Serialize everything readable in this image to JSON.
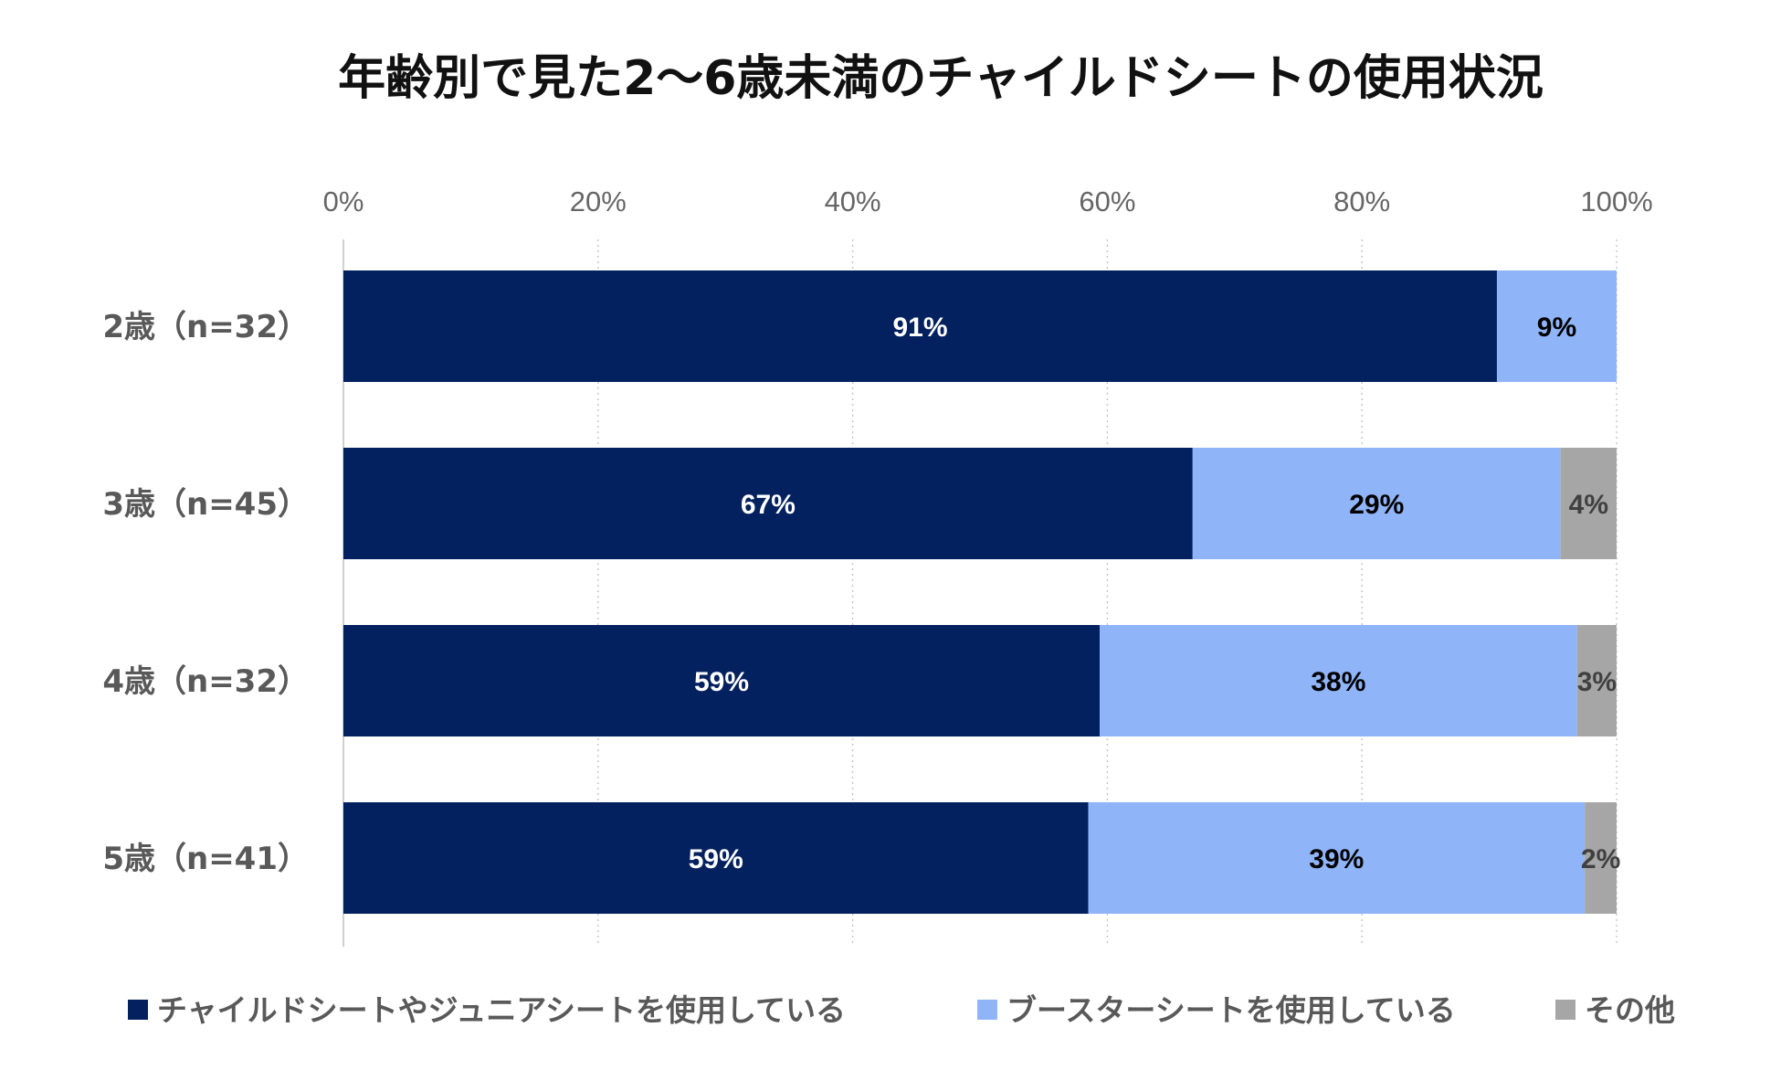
{
  "chart_data": {
    "type": "bar",
    "orientation": "horizontal",
    "stacked": "percent",
    "title": "年齢別で見た2～6歳未満のチャイルドシートの使用状況",
    "categories": [
      "2歳（n=32）",
      "3歳（n=45）",
      "4歳（n=32）",
      "5歳（n=41）"
    ],
    "xlim": [
      0,
      100
    ],
    "x_ticks": [
      0,
      20,
      40,
      60,
      80,
      100
    ],
    "x_tick_labels": [
      "0%",
      "20%",
      "40%",
      "60%",
      "80%",
      "100%"
    ],
    "x_axis_position": "top",
    "grid": "vertical-dotted",
    "legend_position": "bottom",
    "series": [
      {
        "name": "チャイルドシートやジュニアシートを使用している",
        "color": "#03205f",
        "label_color": "#ffffff",
        "values": [
          90.6,
          66.7,
          59.4,
          58.5
        ],
        "labels": [
          "91%",
          "67%",
          "59%",
          "59%"
        ]
      },
      {
        "name": "ブースターシートを使用している",
        "color": "#8fb4f8",
        "label_color": "#000000",
        "values": [
          9.4,
          28.9,
          37.5,
          39.0
        ],
        "labels": [
          "9%",
          "29%",
          "38%",
          "39%"
        ]
      },
      {
        "name": "その他",
        "color": "#a6a6a6",
        "label_color": "#404040",
        "values": [
          0,
          4.4,
          3.1,
          2.5
        ],
        "labels": [
          "",
          "4%",
          "3%",
          "2%"
        ]
      }
    ]
  }
}
